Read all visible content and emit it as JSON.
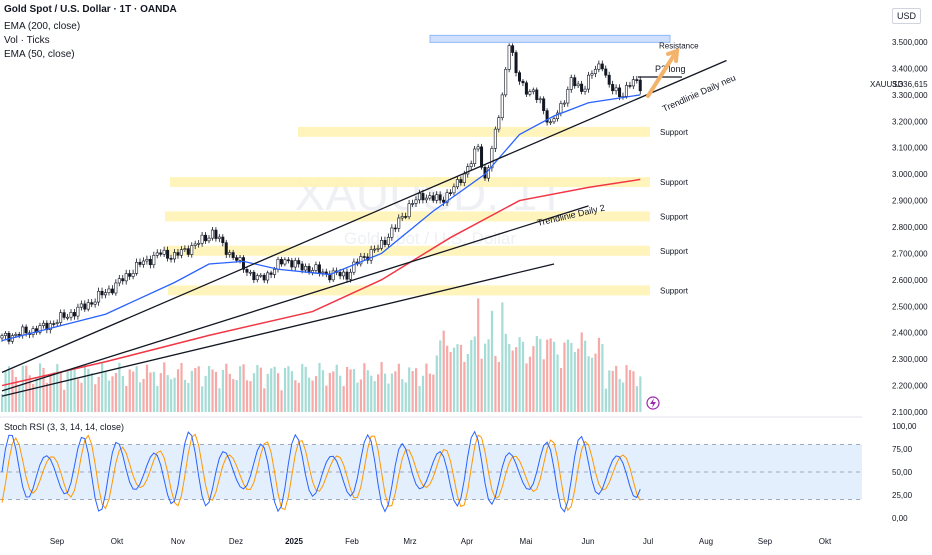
{
  "header": {
    "title": "Gold Spot / U.S. Dollar · 1T · OANDA",
    "ind1": "EMA (200, close)",
    "ind2": "Vol · Ticks",
    "ind3": "EMA (50, close)",
    "currency": "USD"
  },
  "watermark": {
    "symbol": "XAUUSD, 1T",
    "name": "Gold Spot / U.S. Dollar"
  },
  "stoch_label": "Stoch RSI (3, 3, 14, 14, close)",
  "colors": {
    "up": "#26a69a",
    "down": "#ef5350",
    "candle": "#131722",
    "ema50": "#2962ff",
    "ema200": "#f23645",
    "zone": "#fff3b0",
    "resistance": "#90b8f8",
    "stochK": "#2962ff",
    "stochD": "#ff9800",
    "stochBand": "#e3effd"
  },
  "chart_data": {
    "type": "candlestick",
    "x_labels": [
      "Sep",
      "Okt",
      "Nov",
      "Dez",
      "2025",
      "Feb",
      "Mrz",
      "Apr",
      "Mai",
      "Jun",
      "Jul",
      "Aug",
      "Sep",
      "Okt"
    ],
    "y_ticks": [
      "3.500,000",
      "3.400,000",
      "3.300,000",
      "3.200,000",
      "3.100,000",
      "3.000,000",
      "2.900,000",
      "2.800,000",
      "2.700,000",
      "2.600,000",
      "2.500,000",
      "2.400,000",
      "2.300,000",
      "2.200,000",
      "2.100,000"
    ],
    "ylim": [
      2100,
      3540
    ],
    "last_price": {
      "symbol": "XAUUSD",
      "value": "3.336,615",
      "value2": "3.300,000"
    },
    "price_path": [
      [
        0,
        2380
      ],
      [
        12,
        2420
      ],
      [
        24,
        2500
      ],
      [
        33,
        2580
      ],
      [
        40,
        2660
      ],
      [
        46,
        2700
      ],
      [
        50,
        2690
      ],
      [
        57,
        2740
      ],
      [
        61,
        2780
      ],
      [
        66,
        2700
      ],
      [
        70,
        2650
      ],
      [
        74,
        2600
      ],
      [
        78,
        2630
      ],
      [
        82,
        2680
      ],
      [
        86,
        2650
      ],
      [
        90,
        2640
      ],
      [
        95,
        2620
      ],
      [
        100,
        2620
      ],
      [
        104,
        2680
      ],
      [
        109,
        2720
      ],
      [
        114,
        2800
      ],
      [
        118,
        2880
      ],
      [
        122,
        2920
      ],
      [
        127,
        2900
      ],
      [
        132,
        2960
      ],
      [
        136,
        3050
      ],
      [
        138,
        3100
      ],
      [
        140,
        2980
      ],
      [
        143,
        3150
      ],
      [
        145,
        3300
      ],
      [
        147,
        3500
      ],
      [
        149,
        3380
      ],
      [
        152,
        3320
      ],
      [
        156,
        3280
      ],
      [
        159,
        3180
      ],
      [
        162,
        3260
      ],
      [
        165,
        3350
      ],
      [
        168,
        3320
      ],
      [
        171,
        3380
      ],
      [
        174,
        3420
      ],
      [
        176,
        3330
      ],
      [
        179,
        3300
      ],
      [
        183,
        3350
      ],
      [
        185,
        3336
      ]
    ],
    "ema50": [
      [
        0,
        2370
      ],
      [
        30,
        2470
      ],
      [
        50,
        2590
      ],
      [
        60,
        2660
      ],
      [
        70,
        2670
      ],
      [
        80,
        2640
      ],
      [
        95,
        2620
      ],
      [
        110,
        2700
      ],
      [
        125,
        2860
      ],
      [
        140,
        3000
      ],
      [
        150,
        3150
      ],
      [
        160,
        3220
      ],
      [
        170,
        3270
      ],
      [
        180,
        3290
      ],
      [
        185,
        3300
      ]
    ],
    "ema200": [
      [
        0,
        2200
      ],
      [
        30,
        2290
      ],
      [
        60,
        2390
      ],
      [
        90,
        2480
      ],
      [
        110,
        2600
      ],
      [
        130,
        2760
      ],
      [
        150,
        2900
      ],
      [
        170,
        2950
      ],
      [
        185,
        2980
      ]
    ],
    "support_zones": [
      {
        "label": "Support",
        "value": 3160
      },
      {
        "label": "Support",
        "value": 2970
      },
      {
        "label": "Support",
        "value": 2840
      },
      {
        "label": "Support",
        "value": 2710
      },
      {
        "label": "Support",
        "value": 2560
      }
    ],
    "resistance": {
      "label": "Resistance",
      "value": 3510
    },
    "trendlines": [
      {
        "label": "Trendlinie Daily neu",
        "from": [
          0,
          2250
        ],
        "to": [
          210,
          3430
        ]
      },
      {
        "label": "Trendlinie Daily 2",
        "from": [
          0,
          2180
        ],
        "to": [
          170,
          2880
        ]
      },
      {
        "label": "",
        "from": [
          0,
          2160
        ],
        "to": [
          160,
          2660
        ]
      }
    ],
    "annotation": "P2 long",
    "stoch_ticks": [
      "100,00",
      "75,00",
      "50,00",
      "25,00",
      "0,00"
    ],
    "stoch_band": [
      20,
      80
    ],
    "stoch_k_cycles": 18
  }
}
